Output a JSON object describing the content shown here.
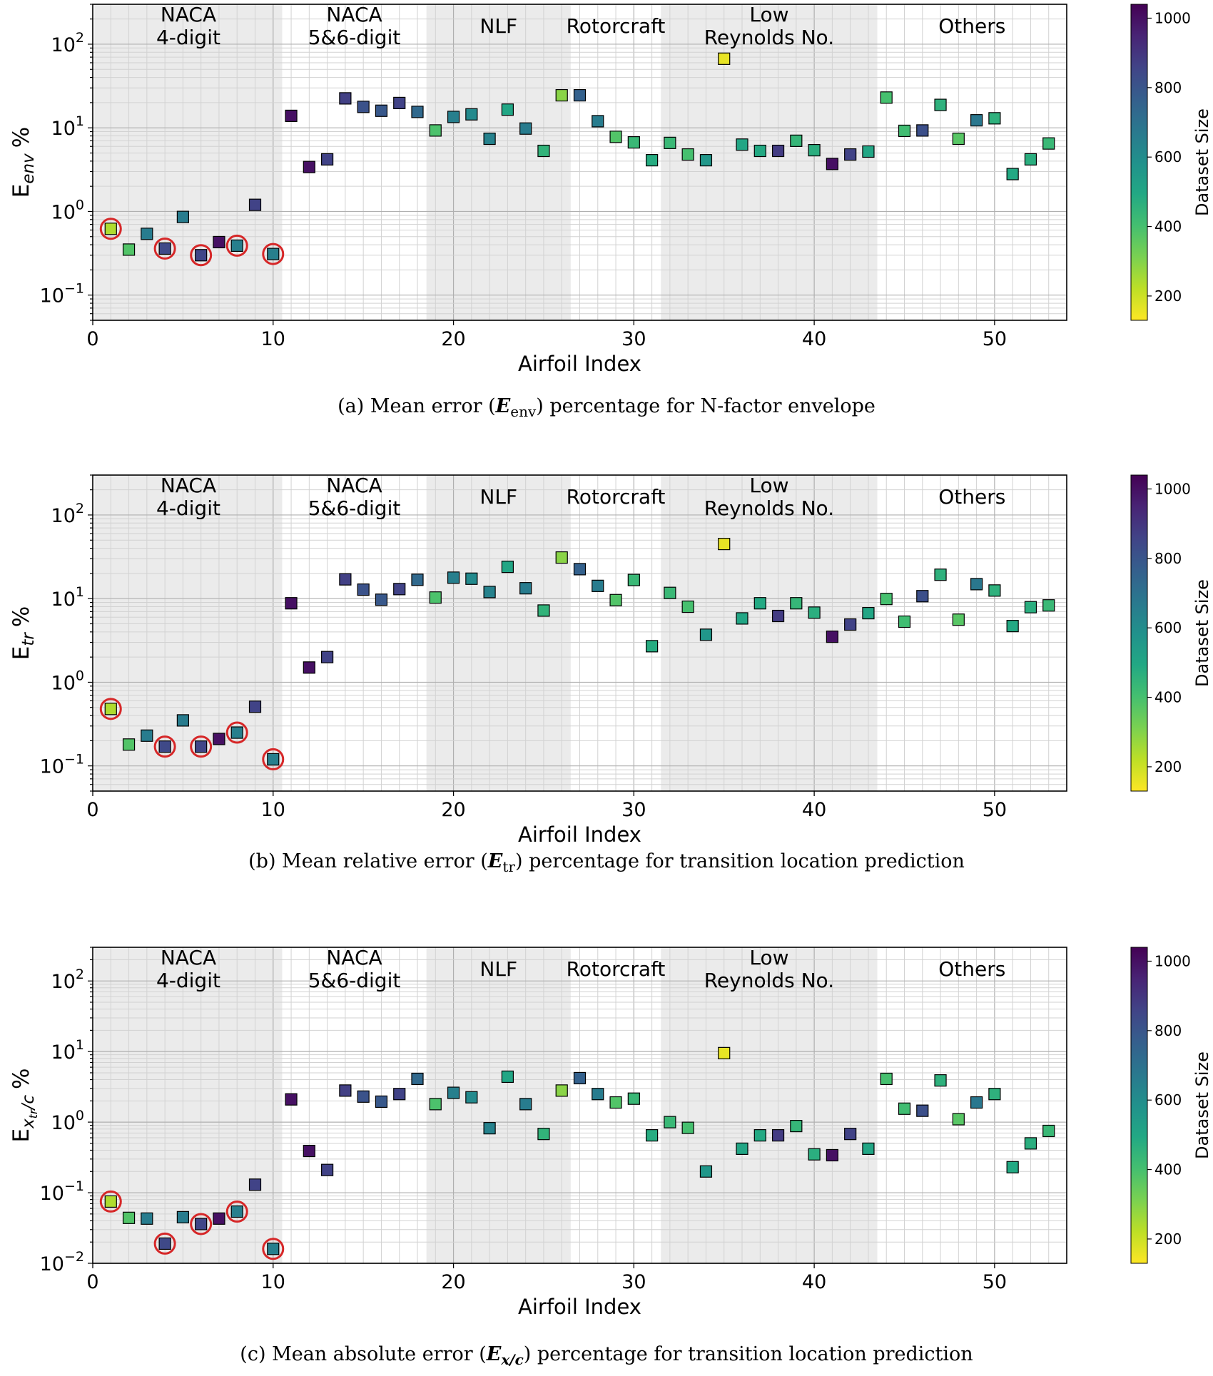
{
  "figure": {
    "x_ticks": [
      0,
      10,
      20,
      30,
      40,
      50
    ],
    "colorbar_label": "Dataset Size",
    "colorbar_ticks": [
      200,
      400,
      600,
      800,
      1000
    ],
    "colorbar_range": [
      130,
      1040
    ],
    "colormap": "viridis_r",
    "highlight_color": "#d62728",
    "shade_color": "#ebebeb",
    "groups": [
      {
        "name": "NACA 4-digit",
        "lines": [
          "NACA",
          "4-digit"
        ],
        "range": [
          0.1,
          10.5
        ],
        "shaded": true
      },
      {
        "name": "NACA 5&6-digit",
        "lines": [
          "NACA",
          "5&6-digit"
        ],
        "range": [
          10.5,
          18.5
        ],
        "shaded": false
      },
      {
        "name": "NLF",
        "lines": [
          "NLF"
        ],
        "range": [
          18.5,
          26.5
        ],
        "shaded": true
      },
      {
        "name": "Rotorcraft",
        "lines": [
          "Rotorcraft"
        ],
        "range": [
          26.5,
          31.5
        ],
        "shaded": false
      },
      {
        "name": "Low Reynolds No.",
        "lines": [
          "Low",
          "Reynolds No."
        ],
        "range": [
          31.5,
          43.5
        ],
        "shaded": true
      },
      {
        "name": "Others",
        "lines": [
          "Others"
        ],
        "range": [
          43.5,
          54
        ],
        "shaded": false
      }
    ],
    "dataset_size": [
      240,
      380,
      660,
      840,
      660,
      850,
      1000,
      650,
      860,
      650,
      1000,
      1000,
      860,
      870,
      810,
      790,
      860,
      730,
      390,
      650,
      610,
      640,
      500,
      660,
      450,
      290,
      760,
      660,
      380,
      430,
      480,
      430,
      400,
      560,
      160,
      500,
      490,
      880,
      440,
      470,
      1000,
      860,
      500,
      400,
      410,
      820,
      460,
      370,
      680,
      460,
      490,
      470,
      430
    ],
    "highlighted": [
      1,
      4,
      6,
      8,
      10
    ]
  },
  "chart_data": [
    {
      "type": "scatter",
      "xlabel": "Airfoil Index",
      "ylabel": "E_env %",
      "ylabel_main": "E",
      "ylabel_sub": "env",
      "yscale": "log",
      "xlim": [
        0,
        54
      ],
      "ylim": [
        0.05,
        300
      ],
      "yticks": [
        "10^-1",
        "10^0",
        "10^1",
        "10^2"
      ],
      "x": [
        1,
        2,
        3,
        4,
        5,
        6,
        7,
        8,
        9,
        10,
        11,
        12,
        13,
        14,
        15,
        16,
        17,
        18,
        19,
        20,
        21,
        22,
        23,
        24,
        25,
        26,
        27,
        28,
        29,
        30,
        31,
        32,
        33,
        34,
        35,
        36,
        37,
        38,
        39,
        40,
        41,
        42,
        43,
        44,
        45,
        46,
        47,
        48,
        49,
        50,
        51,
        52,
        53
      ],
      "y": [
        0.62,
        0.35,
        0.54,
        0.36,
        0.86,
        0.3,
        0.43,
        0.39,
        1.2,
        0.31,
        13.9,
        3.4,
        4.2,
        22.5,
        17.8,
        16.0,
        19.8,
        15.5,
        9.3,
        13.5,
        14.5,
        7.4,
        16.5,
        9.8,
        5.3,
        24.5,
        24.5,
        12.0,
        7.8,
        6.7,
        4.1,
        6.6,
        4.8,
        4.1,
        67.0,
        6.3,
        5.3,
        5.3,
        7.0,
        5.4,
        3.7,
        4.8,
        5.2,
        23.0,
        9.2,
        9.3,
        18.8,
        7.4,
        12.3,
        13.0,
        2.8,
        4.2,
        6.5
      ],
      "caption_parts": [
        "(a) Mean error (",
        "E",
        "env",
        ") percentage for N-factor envelope"
      ]
    },
    {
      "type": "scatter",
      "xlabel": "Airfoil Index",
      "ylabel": "E_tr %",
      "ylabel_main": "E",
      "ylabel_sub": "tr",
      "yscale": "log",
      "xlim": [
        0,
        54
      ],
      "ylim": [
        0.05,
        300
      ],
      "yticks": [
        "10^-1",
        "10^0",
        "10^1",
        "10^2"
      ],
      "x": [
        1,
        2,
        3,
        4,
        5,
        6,
        7,
        8,
        9,
        10,
        11,
        12,
        13,
        14,
        15,
        16,
        17,
        18,
        19,
        20,
        21,
        22,
        23,
        24,
        25,
        26,
        27,
        28,
        29,
        30,
        31,
        32,
        33,
        34,
        35,
        36,
        37,
        38,
        39,
        40,
        41,
        42,
        43,
        44,
        45,
        46,
        47,
        48,
        49,
        50,
        51,
        52,
        53
      ],
      "y": [
        0.48,
        0.18,
        0.23,
        0.17,
        0.35,
        0.17,
        0.21,
        0.25,
        0.51,
        0.12,
        8.8,
        1.5,
        2.0,
        17.0,
        12.8,
        9.7,
        13.0,
        16.8,
        10.3,
        17.8,
        17.3,
        12.0,
        24.0,
        13.3,
        7.2,
        31.0,
        22.5,
        14.2,
        9.6,
        16.7,
        2.7,
        11.7,
        8.0,
        3.7,
        45.0,
        5.8,
        8.8,
        6.2,
        8.8,
        6.8,
        3.5,
        4.9,
        6.7,
        9.9,
        5.3,
        10.7,
        19.3,
        5.6,
        14.9,
        12.5,
        4.7,
        7.9,
        8.3
      ],
      "caption_parts": [
        "(b) Mean relative error (",
        "E",
        "tr",
        ") percentage for transition location prediction"
      ]
    },
    {
      "type": "scatter",
      "xlabel": "Airfoil Index",
      "ylabel": "E_xtr/c %",
      "ylabel_main": "E",
      "ylabel_sub": "x",
      "ylabel_subsub": "tr",
      "ylabel_tail": "/c",
      "yscale": "log",
      "xlim": [
        0,
        54
      ],
      "ylim": [
        0.01,
        300
      ],
      "yticks": [
        "10^-2",
        "10^-1",
        "10^0",
        "10^1",
        "10^2"
      ],
      "x": [
        1,
        2,
        3,
        4,
        5,
        6,
        7,
        8,
        9,
        10,
        11,
        12,
        13,
        14,
        15,
        16,
        17,
        18,
        19,
        20,
        21,
        22,
        23,
        24,
        25,
        26,
        27,
        28,
        29,
        30,
        31,
        32,
        33,
        34,
        35,
        36,
        37,
        38,
        39,
        40,
        41,
        42,
        43,
        44,
        45,
        46,
        47,
        48,
        49,
        50,
        51,
        52,
        53
      ],
      "y": [
        0.075,
        0.044,
        0.043,
        0.019,
        0.045,
        0.036,
        0.043,
        0.054,
        0.13,
        0.016,
        2.1,
        0.39,
        0.21,
        2.8,
        2.3,
        1.95,
        2.5,
        4.1,
        1.8,
        2.6,
        2.25,
        0.82,
        4.4,
        1.8,
        0.68,
        2.8,
        4.2,
        2.5,
        1.9,
        2.15,
        0.65,
        1.0,
        0.83,
        0.2,
        9.5,
        0.42,
        0.65,
        0.65,
        0.88,
        0.35,
        0.34,
        0.68,
        0.42,
        4.1,
        1.55,
        1.45,
        3.9,
        1.1,
        1.9,
        2.5,
        0.23,
        0.5,
        0.75
      ],
      "caption_parts": [
        "(c) Mean absolute error (",
        "E",
        "x/c",
        ") percentage for transition location prediction"
      ]
    }
  ]
}
